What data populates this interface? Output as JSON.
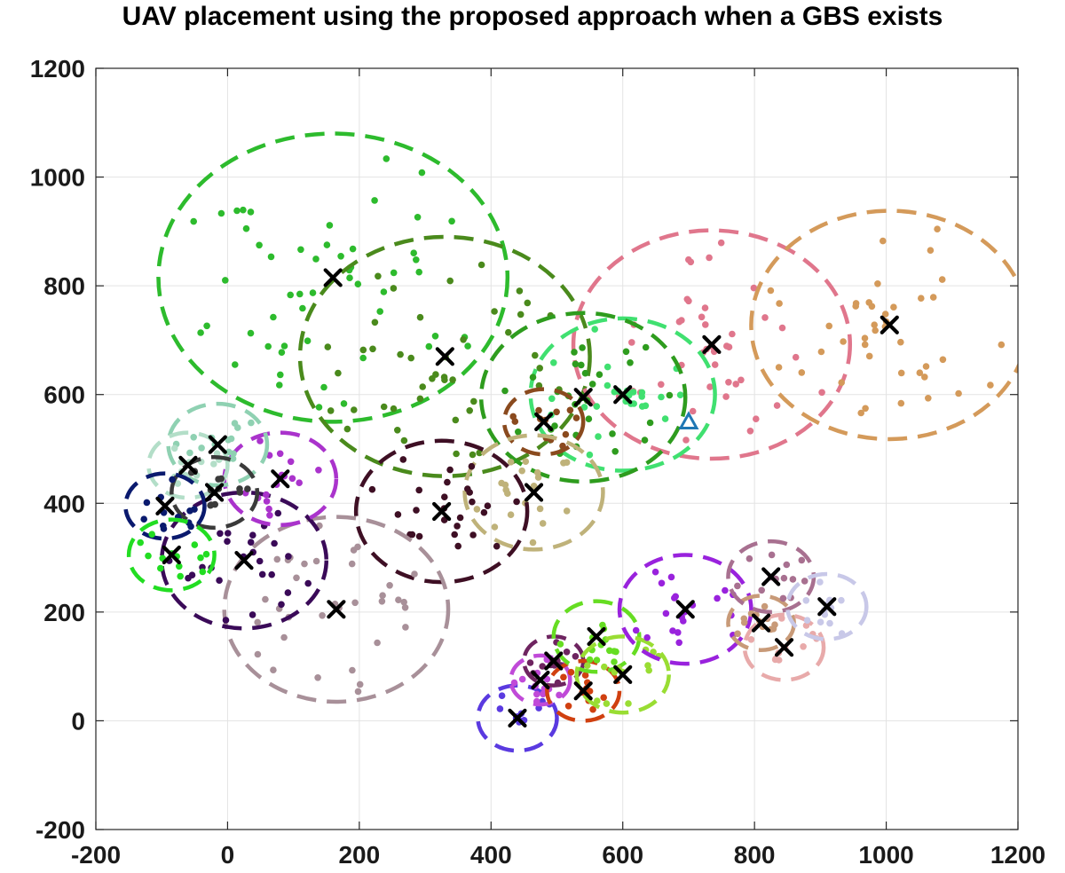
{
  "chart_data": {
    "type": "scatter",
    "title": "UAV placement using the proposed approach when a GBS exists",
    "xlabel": "",
    "ylabel": "",
    "xlim": [
      -200,
      1200
    ],
    "ylim": [
      -200,
      1200
    ],
    "x_ticks": [
      -200,
      0,
      200,
      400,
      600,
      800,
      1000,
      1200
    ],
    "y_ticks": [
      -200,
      0,
      200,
      400,
      600,
      800,
      1000,
      1200
    ],
    "x_tick_labels": [
      "-200",
      "0",
      "200",
      "400",
      "600",
      "800",
      "1000",
      "1200"
    ],
    "y_tick_labels": [
      "-200",
      "0",
      "200",
      "400",
      "600",
      "800",
      "1000",
      "1200"
    ],
    "grid": true,
    "legend": "none",
    "gbs": {
      "x": 700,
      "y": 550,
      "marker": "triangle",
      "color": "#1f77b4"
    },
    "uavs": [
      {
        "x": 160,
        "y": 815,
        "radius": 265,
        "color": "#2dbb2d"
      },
      {
        "x": 330,
        "y": 670,
        "radius": 220,
        "color": "#4a8a1c"
      },
      {
        "x": 735,
        "y": 692,
        "radius": 210,
        "color": "#e0768c"
      },
      {
        "x": 1005,
        "y": 728,
        "radius": 210,
        "color": "#d49a5a"
      },
      {
        "x": 600,
        "y": 600,
        "radius": 140,
        "color": "#40e070"
      },
      {
        "x": 540,
        "y": 595,
        "radius": 155,
        "color": "#2e9c1e"
      },
      {
        "x": 480,
        "y": 550,
        "radius": 60,
        "color": "#8a4a1e"
      },
      {
        "x": 465,
        "y": 420,
        "radius": 105,
        "color": "#bfb27a"
      },
      {
        "x": 325,
        "y": 385,
        "radius": 130,
        "color": "#3e0f24"
      },
      {
        "x": 165,
        "y": 205,
        "radius": 170,
        "color": "#a89099"
      },
      {
        "x": 25,
        "y": 295,
        "radius": 125,
        "color": "#3a0a58"
      },
      {
        "x": 80,
        "y": 445,
        "radius": 85,
        "color": "#aa33cc"
      },
      {
        "x": -15,
        "y": 508,
        "radius": 75,
        "color": "#8fd1b2"
      },
      {
        "x": -60,
        "y": 470,
        "radius": 60,
        "color": "#b3dec8"
      },
      {
        "x": -20,
        "y": 420,
        "radius": 65,
        "color": "#3a3a3a"
      },
      {
        "x": -95,
        "y": 395,
        "radius": 60,
        "color": "#0a1a6e"
      },
      {
        "x": -85,
        "y": 305,
        "radius": 65,
        "color": "#22dd22"
      },
      {
        "x": 440,
        "y": 5,
        "radius": 60,
        "color": "#5a3ae0"
      },
      {
        "x": 475,
        "y": 75,
        "radius": 45,
        "color": "#c04ad8"
      },
      {
        "x": 495,
        "y": 110,
        "radius": 45,
        "color": "#6e2460"
      },
      {
        "x": 540,
        "y": 55,
        "radius": 55,
        "color": "#d04010"
      },
      {
        "x": 560,
        "y": 155,
        "radius": 65,
        "color": "#66dd22"
      },
      {
        "x": 600,
        "y": 85,
        "radius": 70,
        "color": "#99dd33"
      },
      {
        "x": 695,
        "y": 205,
        "radius": 100,
        "color": "#9922dd"
      },
      {
        "x": 810,
        "y": 180,
        "radius": 50,
        "color": "#c89a78"
      },
      {
        "x": 825,
        "y": 265,
        "radius": 65,
        "color": "#a87090"
      },
      {
        "x": 845,
        "y": 135,
        "radius": 60,
        "color": "#e8aaaa"
      },
      {
        "x": 910,
        "y": 210,
        "radius": 60,
        "color": "#c8c8e8"
      }
    ]
  }
}
